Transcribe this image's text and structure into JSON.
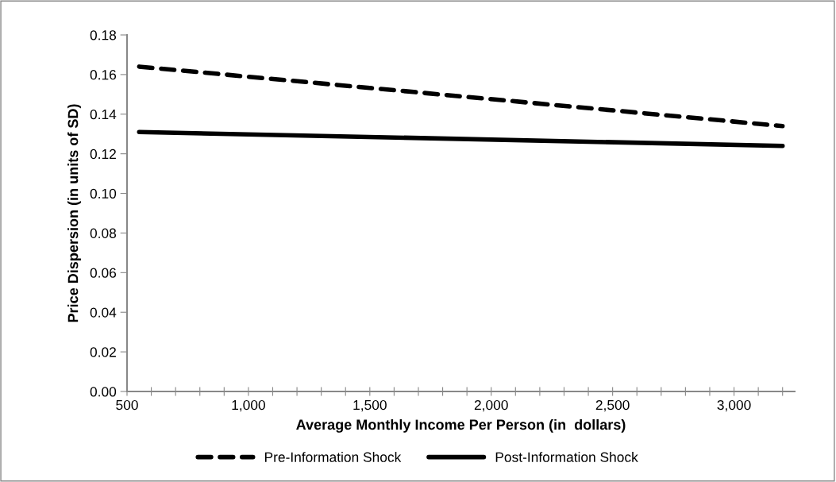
{
  "chart_data": {
    "type": "line",
    "xlabel": "Average Monthly Income Per Person (in  dollars)",
    "ylabel": "Price Dispersion (in units of SD)",
    "x": [
      550,
      3200
    ],
    "series": [
      {
        "name": "Pre-Information Shock",
        "color": "#000000",
        "line_style": "dashed",
        "values": [
          0.164,
          0.134
        ]
      },
      {
        "name": "Post-Information Shock",
        "color": "#000000",
        "line_style": "solid",
        "values": [
          0.131,
          0.124
        ]
      }
    ],
    "xlim": [
      500,
      3250
    ],
    "xticks": [
      500,
      {
        "value": 600,
        "label": null
      },
      {
        "value": 700,
        "label": null
      },
      {
        "value": 800,
        "label": null
      },
      {
        "value": 900,
        "label": null
      },
      {
        "value": 1000,
        "label": "1,000"
      },
      {
        "value": 1100,
        "label": null
      },
      {
        "value": 1200,
        "label": null
      },
      {
        "value": 1300,
        "label": null
      },
      {
        "value": 1400,
        "label": null
      },
      {
        "value": 1500,
        "label": "1,500"
      },
      {
        "value": 1600,
        "label": null
      },
      {
        "value": 1700,
        "label": null
      },
      {
        "value": 1800,
        "label": null
      },
      {
        "value": 1900,
        "label": null
      },
      {
        "value": 2000,
        "label": "2,000"
      },
      {
        "value": 2100,
        "label": null
      },
      {
        "value": 2200,
        "label": null
      },
      {
        "value": 2300,
        "label": null
      },
      {
        "value": 2400,
        "label": null
      },
      {
        "value": 2500,
        "label": "2,500"
      },
      {
        "value": 2600,
        "label": null
      },
      {
        "value": 2700,
        "label": null
      },
      {
        "value": 2800,
        "label": null
      },
      {
        "value": 2900,
        "label": null
      },
      {
        "value": 3000,
        "label": "3,000"
      },
      {
        "value": 3100,
        "label": null
      },
      {
        "value": 3200,
        "label": null
      }
    ],
    "ylim": [
      0,
      0.18
    ],
    "yticks": [
      {
        "value": 0,
        "label": "0.00"
      },
      {
        "value": 0.02,
        "label": "0.02"
      },
      {
        "value": 0.04,
        "label": "0.04"
      },
      {
        "value": 0.06,
        "label": "0.06"
      },
      {
        "value": 0.08,
        "label": "0.08"
      },
      {
        "value": 0.1,
        "label": "0.10"
      },
      {
        "value": 0.12,
        "label": "0.12"
      },
      {
        "value": 0.14,
        "label": "0.14"
      },
      {
        "value": 0.16,
        "label": "0.16"
      },
      {
        "value": 0.18,
        "label": "0.18"
      }
    ],
    "grid": false,
    "legend": "bottom",
    "marker": "none"
  }
}
